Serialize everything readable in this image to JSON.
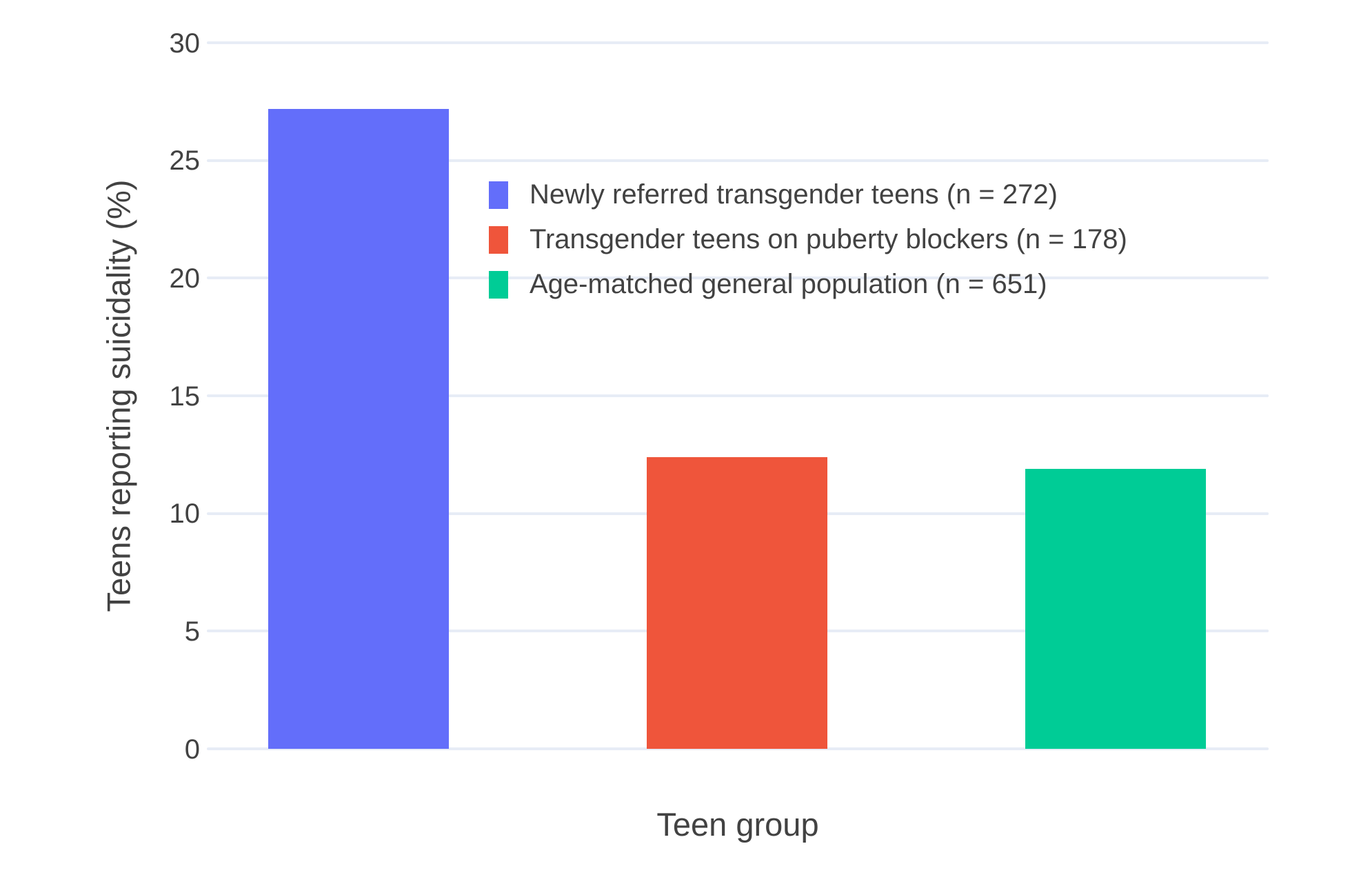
{
  "chart_data": {
    "type": "bar",
    "title": "",
    "xlabel": "Teen group",
    "ylabel": "Teens reporting suicidality (%)",
    "ylim": [
      0,
      30
    ],
    "yticks": [
      0,
      5,
      10,
      15,
      20,
      25,
      30
    ],
    "grid": true,
    "background": "#ffffff",
    "gridline_color": "#e7ecf6",
    "text_color": "#424242",
    "legend_position": "inside-top-center",
    "categories": [
      "Newly referred transgender teens",
      "Transgender teens on puberty blockers",
      "Age-matched general population"
    ],
    "series": [
      {
        "name": "Newly referred transgender teens (n = 272)",
        "value": 27.2,
        "color": "#636efa"
      },
      {
        "name": "Transgender teens on puberty blockers (n = 178)",
        "value": 12.4,
        "color": "#ef553b"
      },
      {
        "name": "Age-matched general population (n = 651)",
        "value": 11.9,
        "color": "#00cc96"
      }
    ]
  },
  "axes": {
    "y_title": "Teens reporting suicidality (%)",
    "x_title": "Teen group"
  }
}
